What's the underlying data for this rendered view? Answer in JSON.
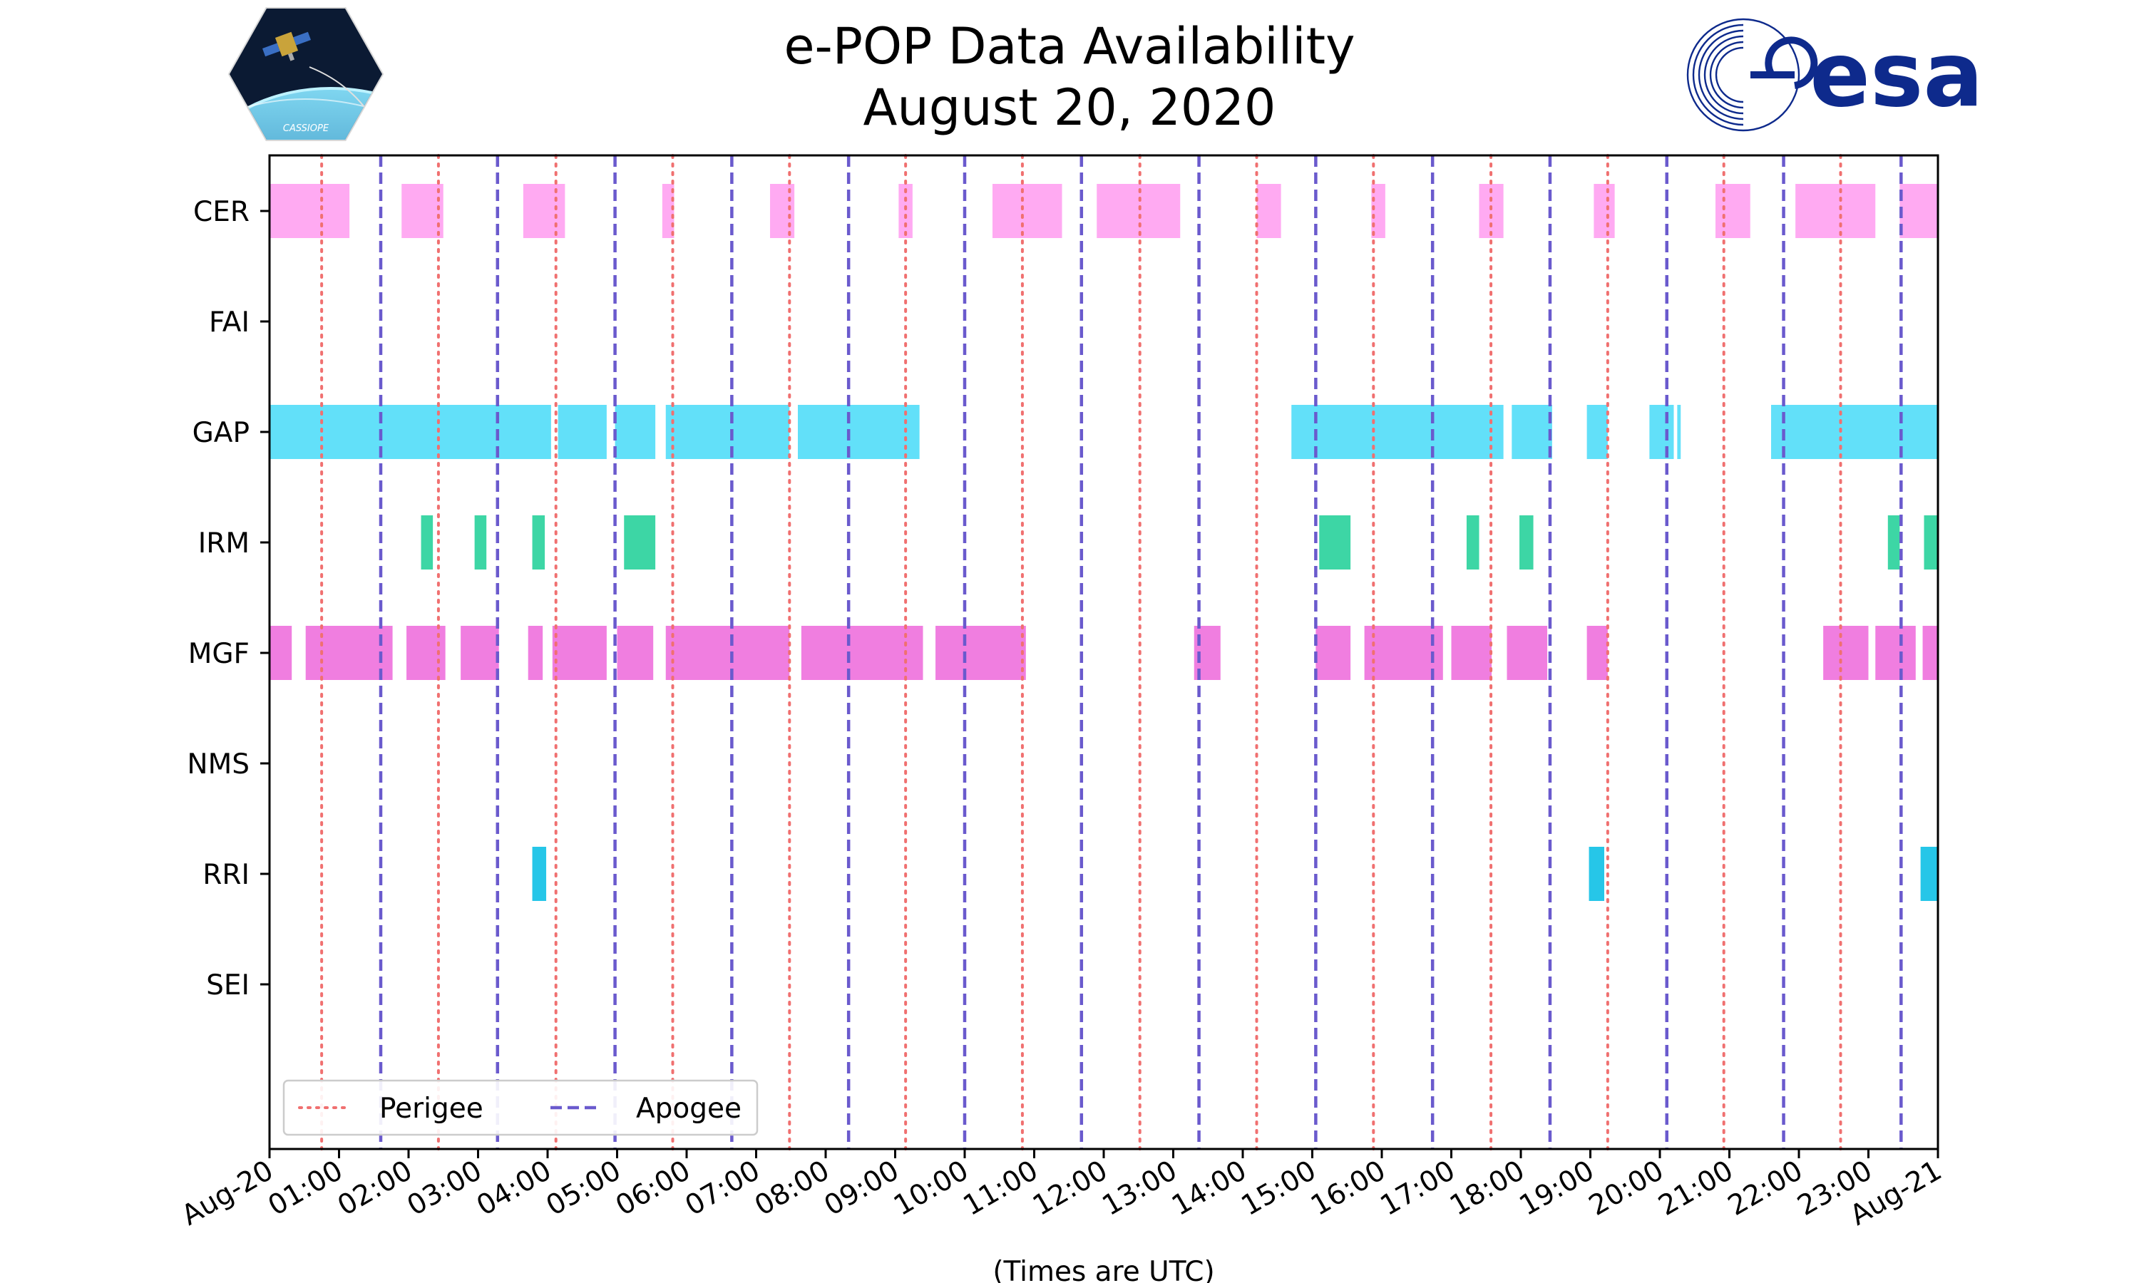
{
  "title": {
    "line1": "e-POP Data Availability",
    "line2": "August 20, 2020"
  },
  "logos": {
    "left": {
      "name": "cassiope-mission-logo",
      "text": "CASSIOPE"
    },
    "right": {
      "name": "esa-logo",
      "text": "esa"
    }
  },
  "colors": {
    "CER": "#ffaaf2",
    "GAP": "#62e0f9",
    "IRM": "#3dd6a5",
    "MGF": "#f07ee0",
    "RRI": "#26c6e8",
    "perigee": "#f07070",
    "apogee": "#6a5acd",
    "esa": "#0e2a8c"
  },
  "chart_data": {
    "type": "timeline",
    "title": "e-POP Data Availability August 20, 2020",
    "xlabel": "(Times are UTC)",
    "ylabel": "",
    "xlim_hours": [
      0,
      24
    ],
    "xtick_labels": [
      "Aug-20",
      "01:00",
      "02:00",
      "03:00",
      "04:00",
      "05:00",
      "06:00",
      "07:00",
      "08:00",
      "09:00",
      "10:00",
      "11:00",
      "12:00",
      "13:00",
      "14:00",
      "15:00",
      "16:00",
      "17:00",
      "18:00",
      "19:00",
      "20:00",
      "21:00",
      "22:00",
      "23:00",
      "Aug-21"
    ],
    "instruments": [
      "CER",
      "FAI",
      "GAP",
      "IRM",
      "MGF",
      "NMS",
      "RRI",
      "SEI"
    ],
    "intervals_hours": {
      "CER": [
        [
          0.0,
          1.15
        ],
        [
          1.9,
          2.5
        ],
        [
          3.65,
          4.25
        ],
        [
          5.65,
          5.82
        ],
        [
          7.2,
          7.55
        ],
        [
          9.05,
          9.25
        ],
        [
          10.4,
          11.4
        ],
        [
          11.9,
          13.1
        ],
        [
          14.2,
          14.55
        ],
        [
          15.85,
          16.05
        ],
        [
          17.4,
          17.75
        ],
        [
          19.05,
          19.35
        ],
        [
          20.8,
          21.3
        ],
        [
          21.95,
          23.1
        ],
        [
          23.45,
          24.0
        ]
      ],
      "FAI": [],
      "GAP": [
        [
          0.0,
          4.05
        ],
        [
          4.15,
          4.85
        ],
        [
          4.97,
          5.55
        ],
        [
          5.7,
          7.48
        ],
        [
          7.6,
          9.35
        ],
        [
          14.7,
          17.75
        ],
        [
          17.87,
          18.45
        ],
        [
          18.95,
          19.25
        ],
        [
          19.85,
          20.2
        ],
        [
          20.25,
          20.3
        ],
        [
          21.6,
          24.0
        ]
      ],
      "IRM": [
        [
          2.18,
          2.35
        ],
        [
          2.95,
          3.12
        ],
        [
          3.78,
          3.96
        ],
        [
          5.1,
          5.55
        ],
        [
          15.1,
          15.55
        ],
        [
          17.22,
          17.4
        ],
        [
          17.98,
          18.18
        ],
        [
          23.28,
          23.45
        ],
        [
          23.8,
          24.0
        ]
      ],
      "MGF": [
        [
          0.0,
          0.32
        ],
        [
          0.52,
          1.77
        ],
        [
          1.97,
          2.53
        ],
        [
          2.75,
          3.3
        ],
        [
          3.72,
          3.93
        ],
        [
          4.07,
          4.85
        ],
        [
          5.0,
          5.52
        ],
        [
          5.7,
          7.48
        ],
        [
          7.65,
          9.4
        ],
        [
          9.58,
          10.88
        ],
        [
          13.3,
          13.68
        ],
        [
          15.05,
          15.55
        ],
        [
          15.75,
          16.88
        ],
        [
          17.0,
          17.58
        ],
        [
          17.8,
          18.38
        ],
        [
          18.95,
          19.25
        ],
        [
          22.35,
          23.0
        ],
        [
          23.1,
          23.68
        ],
        [
          23.78,
          24.0
        ]
      ],
      "NMS": [],
      "RRI": [
        [
          3.78,
          3.98
        ],
        [
          18.98,
          19.2
        ],
        [
          23.75,
          24.0
        ]
      ],
      "SEI": []
    },
    "perigee_hours": [
      0.75,
      2.43,
      4.12,
      5.8,
      7.48,
      9.15,
      10.83,
      12.52,
      14.2,
      15.88,
      17.57,
      19.25,
      20.92,
      22.6
    ],
    "apogee_hours": [
      1.6,
      3.28,
      4.97,
      6.65,
      8.33,
      10.0,
      11.68,
      13.37,
      15.05,
      16.73,
      18.42,
      20.1,
      21.78,
      23.47
    ],
    "legend": {
      "location": "lower-left",
      "entries": [
        {
          "label": "Perigee",
          "style": "dotted"
        },
        {
          "label": "Apogee",
          "style": "dashed"
        }
      ]
    }
  }
}
